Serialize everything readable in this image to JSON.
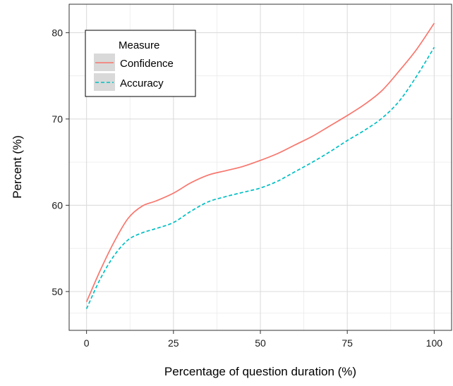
{
  "chart_data": {
    "type": "line",
    "title": "",
    "xlabel": "Percentage of question duration (%)",
    "ylabel": "Percent (%)",
    "xlim": [
      -5,
      105
    ],
    "ylim": [
      45.5,
      83.3
    ],
    "x_ticks": [
      0,
      25,
      50,
      75,
      100
    ],
    "y_ticks": [
      50,
      60,
      70,
      80
    ],
    "x_tick_labels": [
      "0",
      "25",
      "50",
      "75",
      "100"
    ],
    "y_tick_labels": [
      "50",
      "60",
      "70",
      "80"
    ],
    "grid": true,
    "legend": {
      "title": "Measure",
      "placement": "top-left"
    },
    "x": [
      0,
      4,
      8,
      12,
      16,
      20,
      25,
      30,
      35,
      40,
      45,
      50,
      55,
      60,
      65,
      70,
      75,
      80,
      85,
      90,
      95,
      100
    ],
    "series": [
      {
        "name": "Confidence",
        "color": "#F8766D",
        "dash": "solid",
        "values": [
          48.8,
          52.5,
          55.8,
          58.5,
          59.9,
          60.5,
          61.4,
          62.6,
          63.5,
          64.0,
          64.5,
          65.2,
          66.0,
          67.0,
          68.0,
          69.2,
          70.4,
          71.7,
          73.3,
          75.6,
          78.1,
          81.1
        ]
      },
      {
        "name": "Accuracy",
        "color": "#00BFC4",
        "dash": "dashed",
        "values": [
          48.0,
          51.5,
          54.2,
          56.0,
          56.8,
          57.3,
          58.0,
          59.3,
          60.4,
          61.0,
          61.5,
          62.0,
          62.8,
          63.9,
          65.0,
          66.2,
          67.5,
          68.7,
          70.1,
          72.1,
          75.0,
          78.3
        ]
      }
    ]
  }
}
